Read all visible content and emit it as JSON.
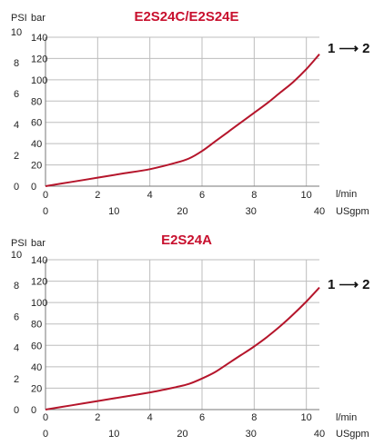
{
  "colors": {
    "curve": "#b5152b",
    "title": "#c8102e",
    "grid": "#bdbdbd",
    "frame": "#777777"
  },
  "chart_data": [
    {
      "type": "line",
      "title": "E2S24C/E2S24E",
      "ylabel_left": "PSI",
      "ylabel_right": "bar",
      "bar_ticks": [
        "10",
        "8",
        "6",
        "4",
        "2",
        "0"
      ],
      "psi_ticks": [
        "140",
        "120",
        "100",
        "80",
        "60",
        "40",
        "20",
        "0"
      ],
      "x_lmin_ticks": [
        "0",
        "2",
        "4",
        "6",
        "8",
        "10"
      ],
      "x_lmin_label": "l/min",
      "x_usgpm_ticks": [
        "0",
        "10",
        "20",
        "30",
        "40"
      ],
      "x_usgpm_label": "USgpm",
      "arrow_label": "1 ⟶ 2",
      "xlim": [
        0,
        10.5
      ],
      "ylim": [
        0,
        140
      ],
      "x": [
        0,
        1,
        2,
        3,
        4,
        5,
        5.5,
        6,
        6.5,
        7,
        7.5,
        8,
        8.5,
        9,
        9.5,
        10,
        10.5
      ],
      "y": [
        0,
        4,
        8,
        12,
        16,
        22,
        26,
        33,
        42,
        51,
        60,
        69,
        78,
        88,
        98,
        110,
        124
      ]
    },
    {
      "type": "line",
      "title": "E2S24A",
      "ylabel_left": "PSI",
      "ylabel_right": "bar",
      "bar_ticks": [
        "10",
        "8",
        "6",
        "4",
        "2",
        "0"
      ],
      "psi_ticks": [
        "140",
        "120",
        "100",
        "80",
        "60",
        "40",
        "20",
        "0"
      ],
      "x_lmin_ticks": [
        "0",
        "2",
        "4",
        "6",
        "8",
        "10"
      ],
      "x_lmin_label": "l/min",
      "x_usgpm_ticks": [
        "0",
        "10",
        "20",
        "30",
        "40"
      ],
      "x_usgpm_label": "USgpm",
      "arrow_label": "1 ⟶ 2",
      "xlim": [
        0,
        10.5
      ],
      "ylim": [
        0,
        140
      ],
      "x": [
        0,
        1,
        2,
        3,
        4,
        5,
        5.5,
        6,
        6.5,
        7,
        7.5,
        8,
        8.5,
        9,
        9.5,
        10,
        10.5
      ],
      "y": [
        0,
        4,
        8,
        12,
        16,
        21,
        24,
        29,
        35,
        43,
        51,
        59,
        68,
        78,
        89,
        101,
        114
      ]
    }
  ]
}
